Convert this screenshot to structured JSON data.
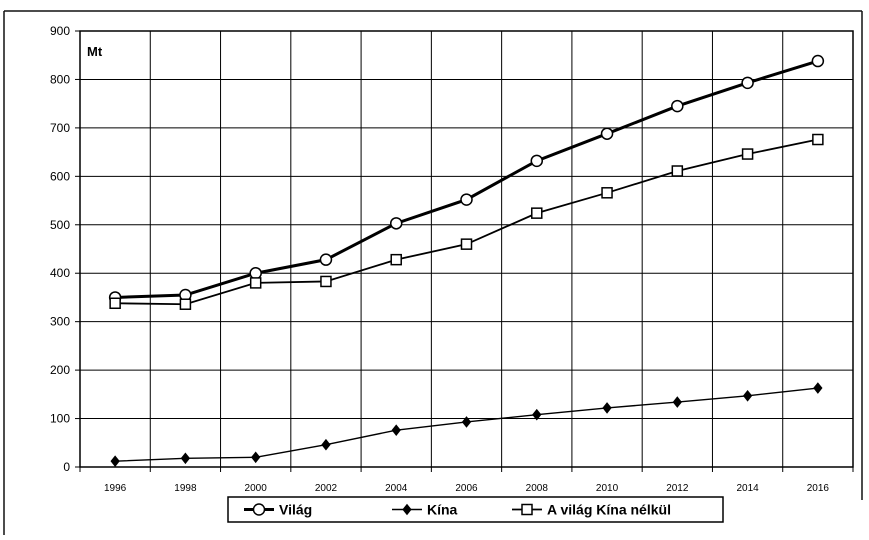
{
  "chart_data": {
    "type": "line",
    "title": "",
    "y_unit": "Mt",
    "xlabel": "",
    "ylabel": "",
    "x": [
      "1996",
      "1998",
      "2000",
      "2002",
      "2004",
      "2006",
      "2008",
      "2010",
      "2012",
      "2014",
      "2016"
    ],
    "y_ticks": [
      "0",
      "100",
      "200",
      "300",
      "400",
      "500",
      "600",
      "700",
      "800",
      "900"
    ],
    "ylim": [
      0,
      900
    ],
    "grid": true,
    "legend_position": "bottom",
    "series": [
      {
        "name": "Világ",
        "marker": "circle",
        "color": "#000000",
        "values": [
          350,
          355,
          400,
          428,
          503,
          552,
          632,
          688,
          745,
          793,
          838
        ]
      },
      {
        "name": "Kína",
        "marker": "diamond",
        "color": "#000000",
        "values": [
          12,
          18,
          20,
          46,
          76,
          93,
          108,
          122,
          134,
          147,
          163
        ]
      },
      {
        "name": "A világ Kína nélkül",
        "marker": "square",
        "color": "#000000",
        "values": [
          338,
          336,
          380,
          383,
          428,
          460,
          524,
          566,
          611,
          646,
          676
        ]
      }
    ]
  }
}
